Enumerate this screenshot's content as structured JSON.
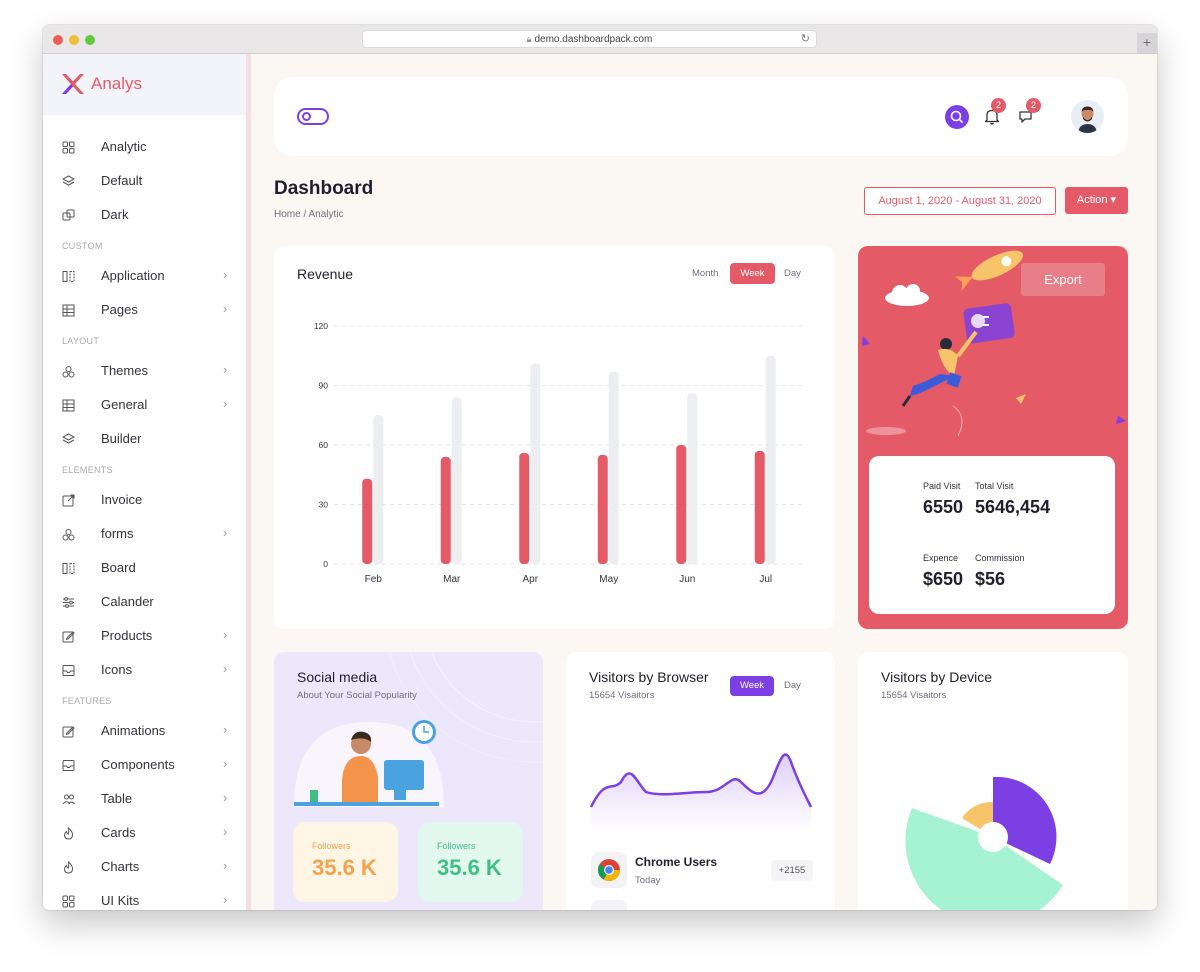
{
  "browser": {
    "url": "demo.dashboardpack.com",
    "new_tab": "+"
  },
  "brand": {
    "name": "Analys"
  },
  "sidebar": {
    "items": [
      {
        "label": "Analytic",
        "icon": "grid-icon",
        "chevron": false
      },
      {
        "label": "Default",
        "icon": "layers-icon",
        "chevron": false
      },
      {
        "label": "Dark",
        "icon": "copy-icon",
        "chevron": false
      },
      {
        "section": "CUSTOM"
      },
      {
        "label": "Application",
        "icon": "columns-icon",
        "chevron": true
      },
      {
        "label": "Pages",
        "icon": "table-icon",
        "chevron": true
      },
      {
        "section": "LAYOUT"
      },
      {
        "label": "Themes",
        "icon": "shapes-icon",
        "chevron": true
      },
      {
        "label": "General",
        "icon": "table-icon",
        "chevron": true
      },
      {
        "label": "Builder",
        "icon": "layers-icon",
        "chevron": false
      },
      {
        "section": "ELEMENTS"
      },
      {
        "label": "Invoice",
        "icon": "external-link-icon",
        "chevron": false
      },
      {
        "label": "forms",
        "icon": "shapes-icon",
        "chevron": true
      },
      {
        "label": "Board",
        "icon": "columns-icon",
        "chevron": false
      },
      {
        "label": "Calander",
        "icon": "sliders-icon",
        "chevron": false
      },
      {
        "label": "Products",
        "icon": "edit-icon",
        "chevron": true
      },
      {
        "label": "Icons",
        "icon": "inbox-icon",
        "chevron": true
      },
      {
        "section": "FEATURES"
      },
      {
        "label": "Animations",
        "icon": "edit-icon",
        "chevron": true
      },
      {
        "label": "Components",
        "icon": "inbox-icon",
        "chevron": true
      },
      {
        "label": "Table",
        "icon": "users-icon",
        "chevron": true
      },
      {
        "label": "Cards",
        "icon": "fire-icon",
        "chevron": true
      },
      {
        "label": "Charts",
        "icon": "fire-icon",
        "chevron": true
      },
      {
        "label": "UI Kits",
        "icon": "grid-icon",
        "chevron": true
      }
    ],
    "chevron_glyph": "›"
  },
  "header": {
    "notifications_count": "2",
    "messages_count": "2"
  },
  "page": {
    "title": "Dashboard",
    "breadcrumb": "Home  /  Analytic",
    "date_range": "August 1, 2020 - August 31, 2020",
    "action_label": "Action ▾"
  },
  "revenue": {
    "title": "Revenue",
    "tabs": [
      "Month",
      "Week",
      "Day"
    ],
    "active_tab": "Week"
  },
  "chart_data": {
    "type": "bar",
    "categories": [
      "Feb",
      "Mar",
      "Apr",
      "May",
      "Jun",
      "Jul"
    ],
    "series": [
      {
        "color": "#e55a67",
        "values": [
          43,
          54,
          56,
          55,
          60,
          57
        ]
      },
      {
        "color": "#eceef1",
        "values": [
          75,
          84,
          101,
          97,
          86,
          105
        ]
      }
    ],
    "yticks": [
      0,
      30,
      60,
      90,
      120
    ],
    "ylim": [
      0,
      120
    ],
    "grid": true
  },
  "stats": {
    "export_label": "Export",
    "paid_visit_label": "Paid Visit",
    "paid_visit_value": "6550",
    "total_visit_label": "Total Visit",
    "total_visit_value": "5646,454",
    "expence_label": "Expence",
    "expence_value": "$650",
    "commission_label": "Commission",
    "commission_value": "$56"
  },
  "social": {
    "title": "Social media",
    "subtitle": "About Your Social Popularity",
    "followers": [
      {
        "label": "Followers",
        "value": "35.6 K",
        "color": "#f4a24b"
      },
      {
        "label": "Followers",
        "value": "35.6 K",
        "color": "#3fbf85"
      }
    ]
  },
  "visitors_browser": {
    "title": "Visitors by Browser",
    "subtitle": "15654 Visaitors",
    "tabs": [
      "Week",
      "Day"
    ],
    "active_tab": "Week",
    "rows": [
      {
        "name": "Chrome Users",
        "period": "Today",
        "count": "+2155"
      }
    ]
  },
  "visitors_device": {
    "title": "Visitors by Device",
    "subtitle": "15654 Visaitors"
  },
  "colors": {
    "accent": "#e55a67",
    "purple": "#7b3fe4",
    "green": "#a6f3d4",
    "yellow": "#f8c46a"
  }
}
